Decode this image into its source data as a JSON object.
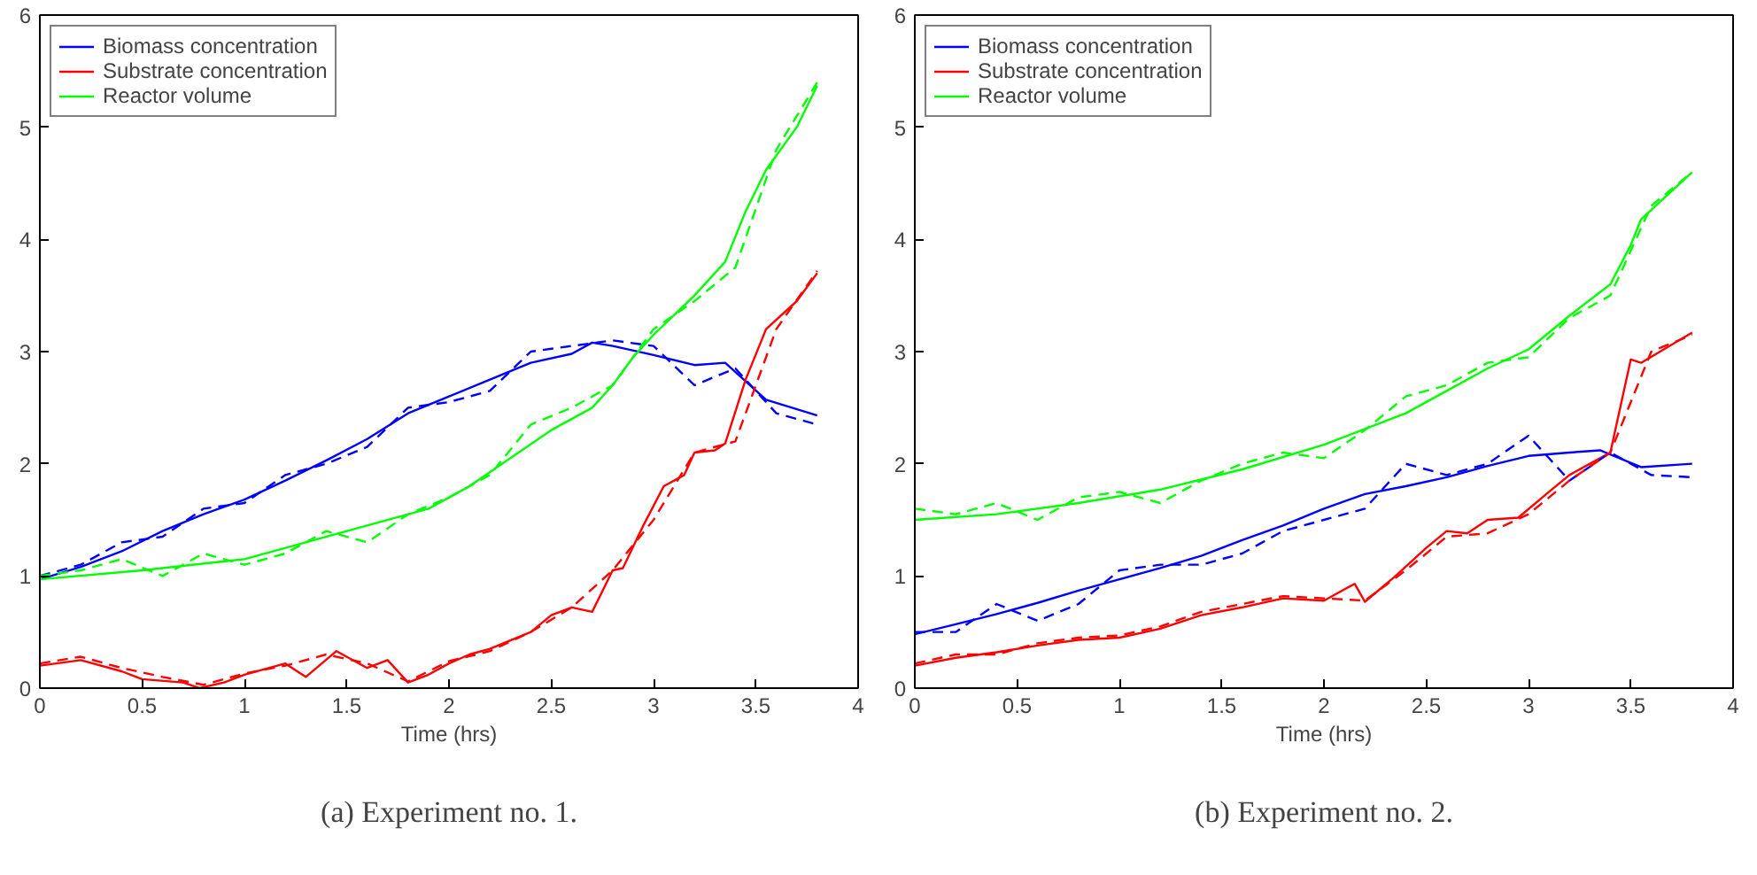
{
  "chart_data": [
    {
      "type": "line",
      "title": "(a) Experiment no. 1.",
      "xlabel": "Time (hrs)",
      "xlim": [
        0,
        4
      ],
      "ylim": [
        0,
        6
      ],
      "xticks": [
        0,
        0.5,
        1,
        1.5,
        2,
        2.5,
        3,
        3.5,
        4
      ],
      "yticks": [
        0,
        1,
        2,
        3,
        4,
        5,
        6
      ],
      "grid": false,
      "legend": "top left",
      "series": [
        {
          "name": "Biomass concentration",
          "color": "#0000ff",
          "x": [
            0,
            0.2,
            0.4,
            0.6,
            0.8,
            1.0,
            1.2,
            1.4,
            1.6,
            1.8,
            2.0,
            2.2,
            2.4,
            2.6,
            2.7,
            2.8,
            3.0,
            3.2,
            3.35,
            3.55,
            3.8
          ],
          "values": [
            0.97,
            1.08,
            1.22,
            1.4,
            1.55,
            1.68,
            1.85,
            2.03,
            2.22,
            2.45,
            2.6,
            2.75,
            2.9,
            2.98,
            3.08,
            3.05,
            2.97,
            2.88,
            2.9,
            2.57,
            2.43
          ]
        },
        {
          "name": "Substrate concentration",
          "color": "#ff0000",
          "x": [
            0,
            0.2,
            0.4,
            0.5,
            0.7,
            0.78,
            0.9,
            1.0,
            1.2,
            1.3,
            1.45,
            1.6,
            1.7,
            1.8,
            1.9,
            2.0,
            2.1,
            2.2,
            2.4,
            2.5,
            2.6,
            2.7,
            2.8,
            2.85,
            2.95,
            3.05,
            3.15,
            3.2,
            3.3,
            3.35,
            3.45,
            3.55,
            3.7,
            3.8
          ],
          "values": [
            0.2,
            0.25,
            0.15,
            0.08,
            0.05,
            0.0,
            0.05,
            0.12,
            0.22,
            0.1,
            0.33,
            0.18,
            0.25,
            0.05,
            0.12,
            0.22,
            0.3,
            0.35,
            0.5,
            0.65,
            0.72,
            0.68,
            1.05,
            1.07,
            1.45,
            1.8,
            1.9,
            2.1,
            2.12,
            2.18,
            2.75,
            3.2,
            3.45,
            3.7
          ]
        },
        {
          "name": "Reactor volume",
          "color": "#00ff00",
          "x": [
            0,
            0.5,
            1.0,
            1.3,
            1.6,
            1.9,
            2.1,
            2.3,
            2.5,
            2.7,
            2.8,
            2.9,
            3.0,
            3.2,
            3.35,
            3.45,
            3.55,
            3.7,
            3.8
          ],
          "values": [
            0.97,
            1.05,
            1.15,
            1.3,
            1.45,
            1.6,
            1.8,
            2.05,
            2.3,
            2.5,
            2.7,
            2.95,
            3.15,
            3.5,
            3.8,
            4.25,
            4.62,
            5.0,
            5.37
          ]
        },
        {
          "color": "#0000ff",
          "line_style": "dashed",
          "x": [
            0,
            0.2,
            0.4,
            0.6,
            0.8,
            1.0,
            1.2,
            1.4,
            1.6,
            1.8,
            2.0,
            2.2,
            2.4,
            2.6,
            2.8,
            3.0,
            3.2,
            3.4,
            3.6,
            3.8
          ],
          "values": [
            1.0,
            1.1,
            1.3,
            1.35,
            1.6,
            1.65,
            1.9,
            2.0,
            2.15,
            2.5,
            2.55,
            2.65,
            3.0,
            3.05,
            3.1,
            3.05,
            2.7,
            2.85,
            2.45,
            2.35
          ]
        },
        {
          "color": "#ff0000",
          "line_style": "dashed",
          "x": [
            0,
            0.2,
            0.4,
            0.6,
            0.8,
            1.0,
            1.2,
            1.4,
            1.6,
            1.8,
            2.0,
            2.2,
            2.4,
            2.6,
            2.8,
            3.0,
            3.2,
            3.4,
            3.6,
            3.8
          ],
          "values": [
            0.22,
            0.28,
            0.18,
            0.1,
            0.03,
            0.13,
            0.2,
            0.3,
            0.22,
            0.06,
            0.24,
            0.33,
            0.5,
            0.72,
            1.05,
            1.5,
            2.1,
            2.2,
            3.2,
            3.72
          ]
        },
        {
          "color": "#00ff00",
          "line_style": "dashed",
          "x": [
            0,
            0.2,
            0.4,
            0.6,
            0.8,
            1.0,
            1.2,
            1.4,
            1.6,
            1.8,
            2.0,
            2.2,
            2.4,
            2.6,
            2.8,
            3.0,
            3.2,
            3.4,
            3.6,
            3.8
          ],
          "values": [
            1.0,
            1.05,
            1.15,
            1.0,
            1.2,
            1.1,
            1.2,
            1.4,
            1.3,
            1.55,
            1.7,
            1.9,
            2.35,
            2.5,
            2.7,
            3.2,
            3.45,
            3.75,
            4.8,
            5.4
          ]
        }
      ]
    },
    {
      "type": "line",
      "title": "(b) Experiment no. 2.",
      "xlabel": "Time (hrs)",
      "xlim": [
        0,
        4
      ],
      "ylim": [
        0,
        6
      ],
      "xticks": [
        0,
        0.5,
        1,
        1.5,
        2,
        2.5,
        3,
        3.5,
        4
      ],
      "yticks": [
        0,
        1,
        2,
        3,
        4,
        5,
        6
      ],
      "grid": false,
      "legend": "top left",
      "series": [
        {
          "name": "Biomass concentration",
          "color": "#0000ff",
          "x": [
            0,
            0.2,
            0.4,
            0.6,
            0.8,
            1.0,
            1.2,
            1.4,
            1.6,
            1.8,
            2.0,
            2.2,
            2.4,
            2.6,
            2.8,
            3.0,
            3.2,
            3.35,
            3.55,
            3.8
          ],
          "values": [
            0.48,
            0.57,
            0.66,
            0.76,
            0.87,
            0.97,
            1.07,
            1.18,
            1.32,
            1.45,
            1.6,
            1.73,
            1.8,
            1.88,
            1.98,
            2.07,
            2.1,
            2.12,
            1.97,
            2.0
          ]
        },
        {
          "name": "Substrate concentration",
          "color": "#ff0000",
          "x": [
            0,
            0.2,
            0.4,
            0.6,
            0.8,
            1.0,
            1.2,
            1.4,
            1.6,
            1.8,
            2.0,
            2.15,
            2.2,
            2.35,
            2.5,
            2.6,
            2.7,
            2.8,
            2.95,
            3.1,
            3.2,
            3.3,
            3.4,
            3.5,
            3.55,
            3.8
          ],
          "values": [
            0.2,
            0.27,
            0.32,
            0.38,
            0.43,
            0.45,
            0.53,
            0.65,
            0.72,
            0.8,
            0.78,
            0.93,
            0.77,
            1.0,
            1.25,
            1.4,
            1.38,
            1.5,
            1.52,
            1.75,
            1.9,
            2.0,
            2.1,
            2.93,
            2.9,
            3.17
          ]
        },
        {
          "name": "Reactor volume",
          "color": "#00ff00",
          "x": [
            0,
            0.4,
            0.8,
            1.2,
            1.6,
            2.0,
            2.4,
            2.6,
            2.8,
            3.0,
            3.2,
            3.4,
            3.5,
            3.55,
            3.8
          ],
          "values": [
            1.5,
            1.55,
            1.65,
            1.77,
            1.95,
            2.17,
            2.45,
            2.65,
            2.85,
            3.02,
            3.32,
            3.6,
            3.95,
            4.18,
            4.6
          ]
        },
        {
          "color": "#0000ff",
          "line_style": "dashed",
          "x": [
            0,
            0.2,
            0.4,
            0.6,
            0.8,
            1.0,
            1.2,
            1.4,
            1.6,
            1.8,
            2.0,
            2.2,
            2.4,
            2.6,
            2.8,
            3.0,
            3.2,
            3.4,
            3.6,
            3.8
          ],
          "values": [
            0.5,
            0.5,
            0.75,
            0.6,
            0.75,
            1.05,
            1.1,
            1.1,
            1.2,
            1.4,
            1.5,
            1.6,
            2.0,
            1.9,
            2.0,
            2.25,
            1.85,
            2.1,
            1.9,
            1.88
          ]
        },
        {
          "color": "#ff0000",
          "line_style": "dashed",
          "x": [
            0,
            0.2,
            0.4,
            0.6,
            0.8,
            1.0,
            1.2,
            1.4,
            1.6,
            1.8,
            2.0,
            2.2,
            2.4,
            2.6,
            2.8,
            3.0,
            3.2,
            3.4,
            3.6,
            3.8
          ],
          "values": [
            0.22,
            0.3,
            0.3,
            0.4,
            0.45,
            0.47,
            0.55,
            0.68,
            0.75,
            0.82,
            0.8,
            0.78,
            1.05,
            1.35,
            1.38,
            1.55,
            1.85,
            2.1,
            3.0,
            3.15
          ]
        },
        {
          "color": "#00ff00",
          "line_style": "dashed",
          "x": [
            0,
            0.2,
            0.4,
            0.6,
            0.8,
            1.0,
            1.2,
            1.4,
            1.6,
            1.8,
            2.0,
            2.2,
            2.4,
            2.6,
            2.8,
            3.0,
            3.2,
            3.4,
            3.6,
            3.8
          ],
          "values": [
            1.6,
            1.55,
            1.65,
            1.5,
            1.7,
            1.75,
            1.65,
            1.85,
            2.0,
            2.1,
            2.05,
            2.3,
            2.6,
            2.7,
            2.9,
            2.95,
            3.3,
            3.5,
            4.3,
            4.6
          ]
        }
      ]
    }
  ]
}
